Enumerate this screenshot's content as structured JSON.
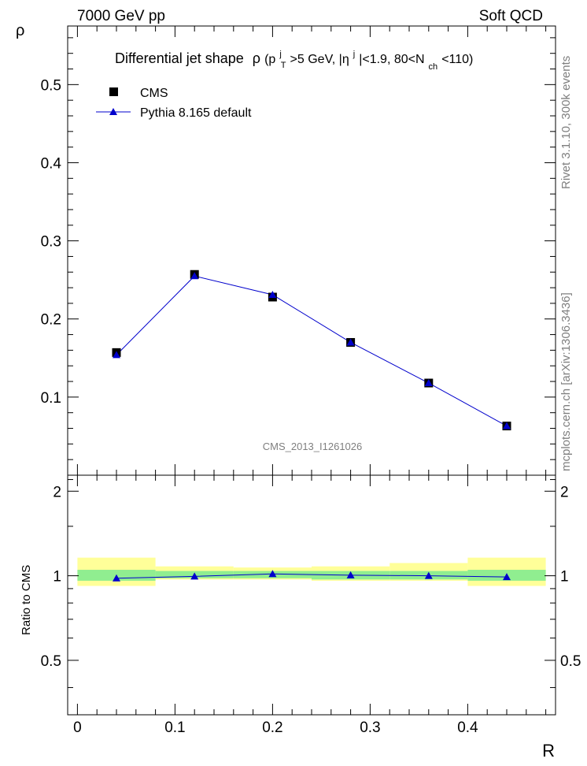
{
  "header": {
    "left": "7000 GeV pp",
    "right": "Soft QCD"
  },
  "side_labels": {
    "rivet": "Rivet 3.1.10,  300k events",
    "mcplots": "mcplots.cern.ch [arXiv:1306.3436]"
  },
  "plot_title": {
    "main": "Differential jet shape",
    "rho": "ρ",
    "cut_open": " (p",
    "cut_pt_sup": "j",
    "cut_pt_sub": "T",
    "cut_mid": ">5 GeV, |η",
    "cut_eta_sup": "j",
    "cut_mid2": "|<1.9, 80<N",
    "cut_nch_sub": "ch",
    "cut_end": "<110)"
  },
  "watermark": "CMS_2013_I1261026",
  "colors": {
    "mc": "#0000cc",
    "data": "#000000",
    "band_inner": "#90ee90",
    "band_outer": "#ffff99"
  },
  "chart_data": [
    {
      "type": "line",
      "panel": "main",
      "ylabel": "ρ",
      "xlim": [
        -0.01,
        0.49
      ],
      "ylim": [
        0.0,
        0.575
      ],
      "yticks": [
        0.1,
        0.2,
        0.3,
        0.4,
        0.5
      ],
      "ytick_labels": [
        "0.1",
        "0.2",
        "0.3",
        "0.4",
        "0.5"
      ],
      "bin_edges": [
        0.0,
        0.08,
        0.16,
        0.24,
        0.32,
        0.4,
        0.48
      ],
      "legend_position": "top-left",
      "series": [
        {
          "name": "CMS",
          "marker": "square",
          "x": [
            0.04,
            0.12,
            0.2,
            0.28,
            0.36,
            0.44
          ],
          "y": [
            0.157,
            0.257,
            0.228,
            0.17,
            0.118,
            0.063
          ]
        },
        {
          "name": "Pythia 8.165 default",
          "marker": "triangle",
          "x": [
            0.04,
            0.12,
            0.2,
            0.28,
            0.36,
            0.44
          ],
          "y": [
            0.154,
            0.255,
            0.231,
            0.17,
            0.118,
            0.063
          ]
        }
      ]
    },
    {
      "type": "line",
      "panel": "ratio",
      "xlabel": "R",
      "ylabel": "Ratio to CMS",
      "xlim": [
        -0.01,
        0.49
      ],
      "ylim": [
        0.32,
        2.28
      ],
      "yticks": [
        0.5,
        1,
        2
      ],
      "ytick_labels": [
        "0.5",
        "1",
        "2"
      ],
      "xticks": [
        0,
        0.1,
        0.2,
        0.3,
        0.4
      ],
      "xtick_labels": [
        "0",
        "0.1",
        "0.2",
        "0.3",
        "0.4"
      ],
      "bands": {
        "bin_edges": [
          0.0,
          0.08,
          0.16,
          0.24,
          0.32,
          0.4,
          0.48
        ],
        "inner_lo": [
          0.96,
          0.98,
          0.98,
          0.97,
          0.97,
          0.96
        ],
        "inner_hi": [
          1.05,
          1.04,
          1.04,
          1.04,
          1.04,
          1.05
        ],
        "outer_lo": [
          0.92,
          0.97,
          0.97,
          0.96,
          0.96,
          0.92
        ],
        "outer_hi": [
          1.16,
          1.08,
          1.07,
          1.08,
          1.11,
          1.16
        ]
      },
      "series": [
        {
          "name": "Pythia 8.165 default",
          "marker": "triangle",
          "x": [
            0.04,
            0.12,
            0.2,
            0.28,
            0.36,
            0.44
          ],
          "y": [
            0.98,
            0.995,
            1.015,
            1.005,
            1.0,
            0.99
          ]
        }
      ]
    }
  ]
}
